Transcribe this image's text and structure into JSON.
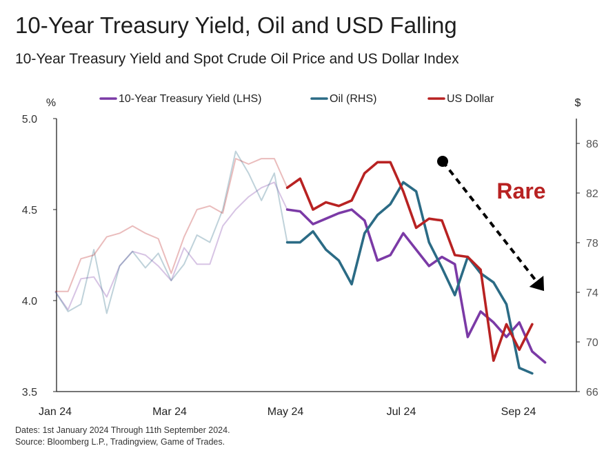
{
  "header": {
    "title": "10-Year Treasury Yield, Oil and USD Falling",
    "subtitle": "10-Year Treasury Yield  and Spot Crude Oil Price and US Dollar Index"
  },
  "footer": {
    "dates": "Dates: 1st January 2024 Through 11th September 2024.",
    "source": "Source: Bloomberg L.P., Tradingview, Game of Trades."
  },
  "colors": {
    "treasury": "#7b3aa6",
    "oil": "#2b6b85",
    "usd": "#b82222",
    "arrow": "#000000",
    "annotation": "#b82222"
  },
  "chart_data": {
    "type": "line",
    "title": "10-Year Treasury Yield, Oil and USD Falling",
    "subtitle": "10-Year Treasury Yield  and Spot Crude Oil Price and US Dollar Index",
    "x_tick_labels": [
      "Jan 24",
      "Mar 24",
      "May 24",
      "Jul 24",
      "Sep 24"
    ],
    "y_left": {
      "unit_label": "%",
      "lim": [
        3.5,
        5.0
      ],
      "ticks": [
        "3.5",
        "4.0",
        "4.5",
        "5.0"
      ]
    },
    "y_right": {
      "unit_label": "$",
      "lim": [
        66,
        88
      ],
      "ticks": [
        "66",
        "70",
        "74",
        "78",
        "82",
        "86"
      ]
    },
    "legend_position": "top",
    "highlight_from_index": 18,
    "series": [
      {
        "name": "10-Year Treasury Yield (LHS)",
        "axis": "left",
        "color_key": "treasury",
        "values": [
          4.05,
          3.95,
          4.12,
          4.13,
          4.02,
          4.19,
          4.27,
          4.25,
          4.19,
          4.11,
          4.29,
          4.2,
          4.2,
          4.41,
          4.5,
          4.57,
          4.62,
          4.65,
          4.5,
          4.49,
          4.42,
          4.45,
          4.48,
          4.5,
          4.44,
          4.22,
          4.25,
          4.37,
          4.28,
          4.19,
          4.24,
          4.2,
          3.8,
          3.94,
          3.88,
          3.8,
          3.88,
          3.72,
          3.66
        ]
      },
      {
        "name": "Oil (RHS)",
        "axis": "left",
        "color_key": "oil",
        "values": [
          4.05,
          3.94,
          3.98,
          4.28,
          3.93,
          4.19,
          4.27,
          4.18,
          4.26,
          4.11,
          4.2,
          4.36,
          4.32,
          4.5,
          4.82,
          4.7,
          4.55,
          4.7,
          4.32,
          4.32,
          4.38,
          4.28,
          4.22,
          4.09,
          4.37,
          4.47,
          4.53,
          4.65,
          4.6,
          4.32,
          4.18,
          4.03,
          4.24,
          4.15,
          4.1,
          3.98,
          3.63,
          3.6
        ]
      },
      {
        "name": "US Dollar",
        "axis": "left",
        "color_key": "usd",
        "values": [
          4.05,
          4.05,
          4.23,
          4.25,
          4.35,
          4.37,
          4.41,
          4.37,
          4.34,
          4.15,
          4.35,
          4.5,
          4.52,
          4.48,
          4.78,
          4.75,
          4.78,
          4.78,
          4.62,
          4.67,
          4.5,
          4.54,
          4.52,
          4.55,
          4.7,
          4.76,
          4.76,
          4.6,
          4.4,
          4.45,
          4.44,
          4.25,
          4.24,
          4.17,
          3.67,
          3.87,
          3.73,
          3.87
        ]
      }
    ],
    "annotation": {
      "text": "Rare",
      "arrow": "downward dashed arrow from x index 29.6 to 37"
    }
  }
}
